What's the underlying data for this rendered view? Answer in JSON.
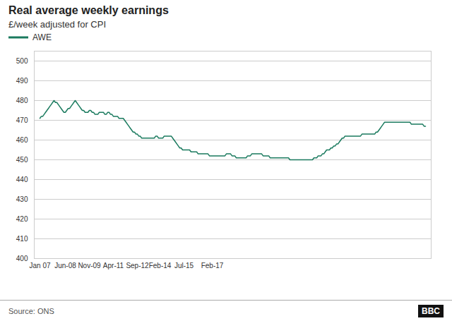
{
  "chart_data": {
    "type": "line",
    "title": "Real average weekly earnings",
    "subtitle": "£/week adjusted for CPI",
    "annotations": [
      "Source: ONS",
      "BBC"
    ],
    "legend": "top-left",
    "grid": true,
    "ylim": [
      400,
      505
    ],
    "yticks": [
      400,
      410,
      420,
      430,
      440,
      450,
      460,
      470,
      480,
      490,
      500
    ],
    "categories": [
      "Jan 07",
      null,
      null,
      null,
      null,
      null,
      null,
      null,
      null,
      null,
      null,
      null,
      null,
      null,
      null,
      null,
      null,
      null,
      "Jun-08",
      null,
      null,
      null,
      null,
      null,
      null,
      null,
      null,
      null,
      null,
      null,
      null,
      null,
      null,
      null,
      null,
      "Nov-09",
      null,
      null,
      null,
      null,
      null,
      null,
      null,
      null,
      null,
      null,
      null,
      null,
      null,
      null,
      null,
      null,
      "Apr-11",
      null,
      null,
      null,
      null,
      null,
      null,
      null,
      null,
      null,
      null,
      null,
      null,
      null,
      null,
      null,
      null,
      "Sep-12",
      null,
      null,
      null,
      null,
      null,
      null,
      null,
      null,
      null,
      null,
      null,
      null,
      null,
      null,
      null,
      "Feb-14",
      null,
      null,
      null,
      null,
      null,
      null,
      null,
      null,
      null,
      null,
      null,
      null,
      null,
      null,
      null,
      null,
      "Jul-15",
      null,
      null,
      null,
      null,
      null,
      null,
      null,
      null,
      null,
      null,
      null,
      null,
      null,
      null,
      null,
      null,
      null,
      null,
      null,
      "Feb-17",
      null,
      null,
      null,
      null,
      null,
      null,
      null,
      null,
      null,
      null,
      null,
      null,
      null,
      null,
      null,
      null,
      null,
      null,
      null,
      null,
      null,
      null,
      null,
      null,
      null,
      null,
      null,
      null,
      null,
      null,
      null,
      null,
      null,
      null,
      null,
      null,
      null,
      null,
      null,
      null,
      null,
      null,
      null,
      null,
      null,
      null,
      null,
      null,
      null,
      null,
      null,
      null,
      null,
      null,
      null,
      null,
      null,
      null,
      null,
      null,
      null,
      null,
      null,
      null,
      null,
      null,
      null,
      null,
      null,
      null,
      null,
      null,
      null,
      null,
      null,
      null,
      null,
      null,
      null,
      null,
      null,
      null,
      null,
      null,
      null,
      null,
      null,
      null,
      null,
      null,
      null,
      null,
      null,
      null,
      null,
      null,
      null,
      null,
      null,
      null,
      null,
      null,
      null,
      null,
      null,
      null,
      null,
      null,
      null,
      null,
      null,
      null,
      null,
      null,
      null,
      null,
      null,
      null,
      null,
      null,
      null,
      null,
      null,
      null,
      null,
      null,
      null,
      null,
      null,
      null,
      null,
      null,
      null,
      null,
      null,
      null,
      null,
      null,
      null,
      null,
      null,
      null,
      null,
      null,
      null,
      null,
      null,
      null,
      null,
      null,
      null
    ],
    "series": [
      {
        "name": "AWE",
        "color": "#1a7a5e",
        "values": [
          471,
          472,
          472,
          473,
          474,
          475,
          476,
          477,
          478,
          479,
          480,
          479,
          479,
          478,
          477,
          476,
          475,
          474,
          474,
          475,
          476,
          476,
          477,
          478,
          479,
          480,
          479,
          478,
          477,
          476,
          475,
          475,
          474,
          474,
          474,
          475,
          475,
          474,
          474,
          473,
          473,
          473,
          474,
          474,
          474,
          474,
          473,
          473,
          474,
          474,
          473,
          473,
          472,
          472,
          472,
          472,
          471,
          471,
          471,
          471,
          470,
          469,
          468,
          467,
          466,
          465,
          464,
          464,
          463,
          463,
          462,
          462,
          461,
          461,
          461,
          461,
          461,
          461,
          461,
          461,
          461,
          461,
          462,
          462,
          461,
          461,
          461,
          461,
          462,
          462,
          462,
          462,
          462,
          462,
          461,
          460,
          459,
          458,
          457,
          456,
          456,
          455,
          455,
          455,
          455,
          455,
          455,
          454,
          454,
          454,
          454,
          454,
          453,
          453,
          453,
          453,
          453,
          453,
          453,
          453,
          452,
          452,
          452,
          452,
          452,
          452,
          452,
          452,
          452,
          452,
          452,
          452,
          453,
          453,
          453,
          453,
          452,
          452,
          452,
          451,
          451,
          451,
          451,
          451,
          451,
          451,
          451,
          452,
          452,
          452,
          453,
          453,
          453,
          453,
          453,
          453,
          453,
          453,
          452,
          452,
          452,
          452,
          452,
          451,
          451,
          451,
          451,
          451,
          451,
          451,
          451,
          451,
          451,
          451,
          451,
          451,
          451,
          450,
          450,
          450,
          450,
          450,
          450,
          450,
          450,
          450,
          450,
          450,
          450,
          450,
          450,
          450,
          450,
          450,
          451,
          451,
          451,
          452,
          452,
          452,
          453,
          453,
          454,
          455,
          455,
          455,
          456,
          456,
          457,
          457,
          458,
          458,
          459,
          460,
          461,
          461,
          462,
          462,
          462,
          462,
          462,
          462,
          462,
          462,
          462,
          462,
          462,
          462,
          463,
          463,
          463,
          463,
          463,
          463,
          463,
          463,
          463,
          463,
          464,
          464,
          465,
          466,
          467,
          468,
          469,
          469,
          469,
          469,
          469,
          469,
          469,
          469,
          469,
          469,
          469,
          469,
          469,
          469,
          469,
          469,
          469,
          469,
          469,
          468,
          468,
          468,
          468,
          468,
          468,
          468,
          468,
          468,
          467,
          467
        ]
      }
    ]
  }
}
